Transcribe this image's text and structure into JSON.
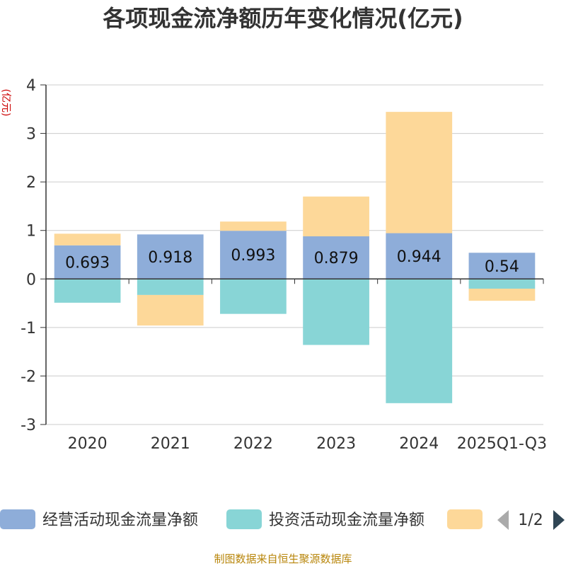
{
  "chart_data": {
    "type": "bar",
    "stacked": true,
    "title": "各项现金流净额历年变化情况(亿元)",
    "ylabel": "(亿元)",
    "ylim": [
      -3,
      4
    ],
    "yticks": [
      4,
      3,
      2,
      1,
      0,
      -1,
      -2,
      -3
    ],
    "categories": [
      "2020",
      "2021",
      "2022",
      "2023",
      "2024",
      "2025Q1-Q3"
    ],
    "series": [
      {
        "name": "经营活动现金流量净额",
        "color": "#8eadd9",
        "values": [
          0.693,
          0.918,
          0.993,
          0.879,
          0.944,
          0.54
        ],
        "labels": [
          "0.693",
          "0.918",
          "0.993",
          "0.879",
          "0.944",
          "0.54"
        ]
      },
      {
        "name": "投资活动现金流量净额",
        "color": "#88d5d6",
        "values": [
          -0.49,
          -0.33,
          -0.72,
          -1.36,
          -2.56,
          -0.2
        ]
      },
      {
        "name": "",
        "color": "#fdd899",
        "values": [
          0.24,
          -0.63,
          0.19,
          0.82,
          2.5,
          -0.25
        ]
      }
    ],
    "legend": {
      "position": "bottom",
      "page": "1/2"
    },
    "source": "制图数据来自恒生聚源数据库"
  }
}
